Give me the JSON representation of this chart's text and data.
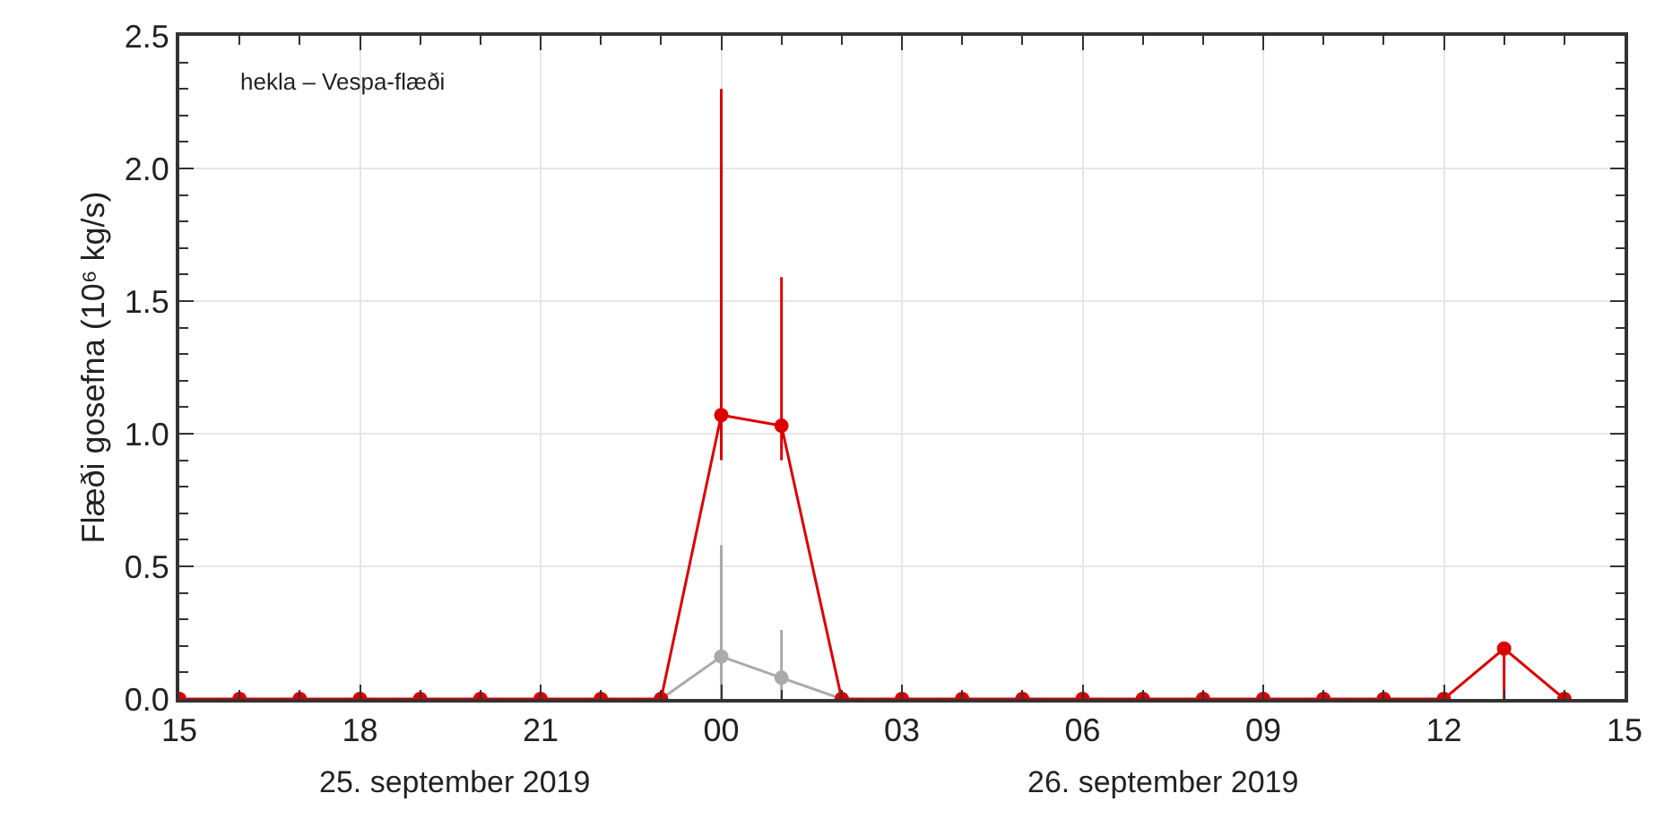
{
  "chart_data": {
    "type": "line",
    "ylabel": "Flæði gosefna (10⁶ kg/s)",
    "annotations": [
      "hekla – Vespa-flæði",
      "25. september 2019",
      "26. september 2019"
    ],
    "x": [
      "2019-09-25T15:00",
      "2019-09-25T16:00",
      "2019-09-25T17:00",
      "2019-09-25T18:00",
      "2019-09-25T19:00",
      "2019-09-25T20:00",
      "2019-09-25T21:00",
      "2019-09-25T22:00",
      "2019-09-25T23:00",
      "2019-09-26T00:00",
      "2019-09-26T01:00",
      "2019-09-26T02:00",
      "2019-09-26T03:00",
      "2019-09-26T04:00",
      "2019-09-26T05:00",
      "2019-09-26T06:00",
      "2019-09-26T07:00",
      "2019-09-26T08:00",
      "2019-09-26T09:00",
      "2019-09-26T10:00",
      "2019-09-26T11:00",
      "2019-09-26T12:00",
      "2019-09-26T13:00",
      "2019-09-26T14:00"
    ],
    "series": [
      {
        "color": "#aaaaaa",
        "values": [
          null,
          null,
          null,
          null,
          null,
          null,
          null,
          null,
          0,
          0.16,
          0.08,
          0,
          null,
          null,
          null,
          null,
          null,
          null,
          null,
          null,
          null,
          null,
          null,
          null
        ],
        "errors": [
          null,
          null,
          null,
          null,
          null,
          null,
          null,
          null,
          null,
          [
            0,
            0.58
          ],
          [
            0,
            0.26
          ],
          null,
          null,
          null,
          null,
          null,
          null,
          null,
          null,
          null,
          null,
          null,
          null,
          null
        ]
      },
      {
        "color": "#dd0000",
        "values": [
          0,
          0,
          0,
          0,
          0,
          0,
          0,
          0,
          0,
          1.07,
          1.03,
          0,
          0,
          0,
          0,
          0,
          0,
          0,
          0,
          0,
          0,
          0,
          0.19,
          0
        ],
        "errors": [
          null,
          null,
          null,
          null,
          null,
          null,
          null,
          null,
          null,
          [
            0.9,
            2.3
          ],
          [
            0.9,
            1.59
          ],
          null,
          null,
          null,
          null,
          null,
          null,
          null,
          null,
          null,
          null,
          null,
          [
            0,
            0.19
          ],
          null
        ]
      }
    ],
    "xlim": [
      "2019-09-25T15:00",
      "2019-09-26T15:00"
    ],
    "xticks": [
      {
        "value": "2019-09-25T15:00",
        "label": "15"
      },
      {
        "value": "2019-09-25T16:00",
        "label": null
      },
      {
        "value": "2019-09-25T17:00",
        "label": null
      },
      {
        "value": "2019-09-25T18:00",
        "label": "18"
      },
      {
        "value": "2019-09-25T19:00",
        "label": null
      },
      {
        "value": "2019-09-25T20:00",
        "label": null
      },
      {
        "value": "2019-09-25T21:00",
        "label": "21"
      },
      {
        "value": "2019-09-25T22:00",
        "label": null
      },
      {
        "value": "2019-09-25T23:00",
        "label": null
      },
      {
        "value": "2019-09-26T00:00",
        "label": "00"
      },
      {
        "value": "2019-09-26T01:00",
        "label": null
      },
      {
        "value": "2019-09-26T02:00",
        "label": null
      },
      {
        "value": "2019-09-26T03:00",
        "label": "03"
      },
      {
        "value": "2019-09-26T04:00",
        "label": null
      },
      {
        "value": "2019-09-26T05:00",
        "label": null
      },
      {
        "value": "2019-09-26T06:00",
        "label": "06"
      },
      {
        "value": "2019-09-26T07:00",
        "label": null
      },
      {
        "value": "2019-09-26T08:00",
        "label": null
      },
      {
        "value": "2019-09-26T09:00",
        "label": "09"
      },
      {
        "value": "2019-09-26T10:00",
        "label": null
      },
      {
        "value": "2019-09-26T11:00",
        "label": null
      },
      {
        "value": "2019-09-26T12:00",
        "label": "12"
      },
      {
        "value": "2019-09-26T13:00",
        "label": null
      },
      {
        "value": "2019-09-26T14:00",
        "label": null
      },
      {
        "value": "2019-09-26T15:00",
        "label": "15"
      }
    ],
    "ylim": [
      0,
      2.5
    ],
    "yticks": [
      {
        "value": 0,
        "label": "0.0"
      },
      {
        "value": 0.1,
        "label": null
      },
      {
        "value": 0.2,
        "label": null
      },
      {
        "value": 0.3,
        "label": null
      },
      {
        "value": 0.4,
        "label": null
      },
      {
        "value": 0.5,
        "label": "0.5"
      },
      {
        "value": 0.6,
        "label": null
      },
      {
        "value": 0.7,
        "label": null
      },
      {
        "value": 0.8,
        "label": null
      },
      {
        "value": 0.9,
        "label": null
      },
      {
        "value": 1,
        "label": "1.0"
      },
      {
        "value": 1.1,
        "label": null
      },
      {
        "value": 1.2,
        "label": null
      },
      {
        "value": 1.3,
        "label": null
      },
      {
        "value": 1.4,
        "label": null
      },
      {
        "value": 1.5,
        "label": "1.5"
      },
      {
        "value": 1.6,
        "label": null
      },
      {
        "value": 1.7,
        "label": null
      },
      {
        "value": 1.8,
        "label": null
      },
      {
        "value": 1.9,
        "label": null
      },
      {
        "value": 2,
        "label": "2.0"
      },
      {
        "value": 2.1,
        "label": null
      },
      {
        "value": 2.2,
        "label": null
      },
      {
        "value": 2.3,
        "label": null
      },
      {
        "value": 2.4,
        "label": null
      },
      {
        "value": 2.5,
        "label": "2.5"
      }
    ],
    "grid": true,
    "marker": "circle",
    "line_style": "solid"
  }
}
